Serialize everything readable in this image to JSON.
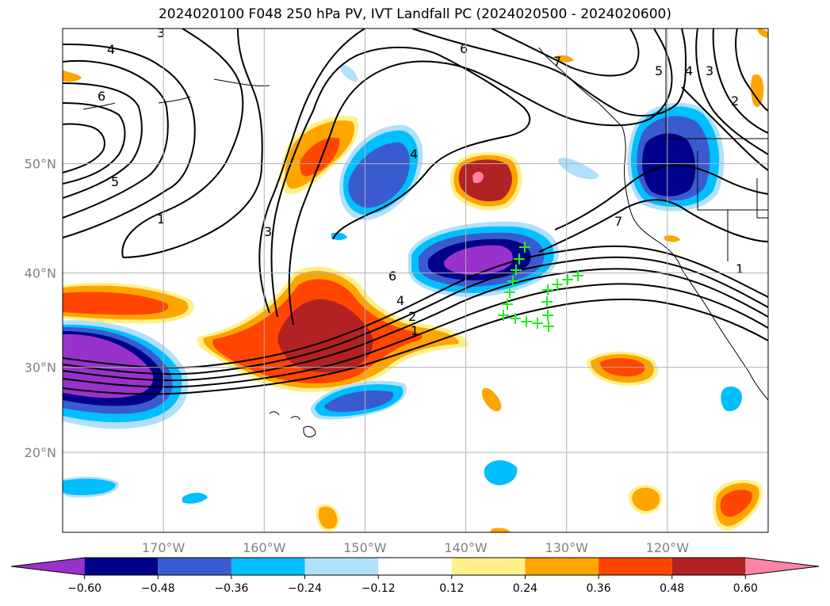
{
  "title": "2024020100 F048 250 hPa PV, IVT Landfall PC (2024020500 - 2024020600)",
  "map": {
    "lat_labels": [
      {
        "lat": 50,
        "label": "50°N"
      },
      {
        "lat": 40,
        "label": "40°N"
      },
      {
        "lat": 30,
        "label": "30°N"
      },
      {
        "lat": 20,
        "label": "20°N"
      }
    ],
    "lon_labels": [
      {
        "lon": -170,
        "label": "170°W"
      },
      {
        "lon": -160,
        "label": "160°W"
      },
      {
        "lon": -150,
        "label": "150°W"
      },
      {
        "lon": -140,
        "label": "140°W"
      },
      {
        "lon": -130,
        "label": "130°W"
      },
      {
        "lon": -120,
        "label": "120°W"
      }
    ],
    "extent": {
      "lon_min": -180,
      "lon_max": -110,
      "lat_min": 10,
      "lat_max": 60
    },
    "grid": true
  },
  "contour_labels": [
    "3",
    "4",
    "6",
    "5",
    "1",
    "3",
    "6",
    "4",
    "7",
    "5",
    "4",
    "3",
    "2",
    "7",
    "6",
    "4",
    "2",
    "1",
    "1"
  ],
  "colorbar": {
    "ticks": [
      "−0.60",
      "−0.48",
      "−0.36",
      "−0.24",
      "−0.12",
      "0.12",
      "0.24",
      "0.36",
      "0.48",
      "0.60"
    ],
    "colors": [
      "#9932cc",
      "#00008b",
      "#3a5bd0",
      "#00bfff",
      "#b0e0fa",
      "#ffffff",
      "#fff08a",
      "#ffa500",
      "#ff4500",
      "#b22222",
      "#ff85a8"
    ],
    "extend": "both"
  },
  "markers": {
    "color": "#22ee22",
    "symbol": "+"
  }
}
